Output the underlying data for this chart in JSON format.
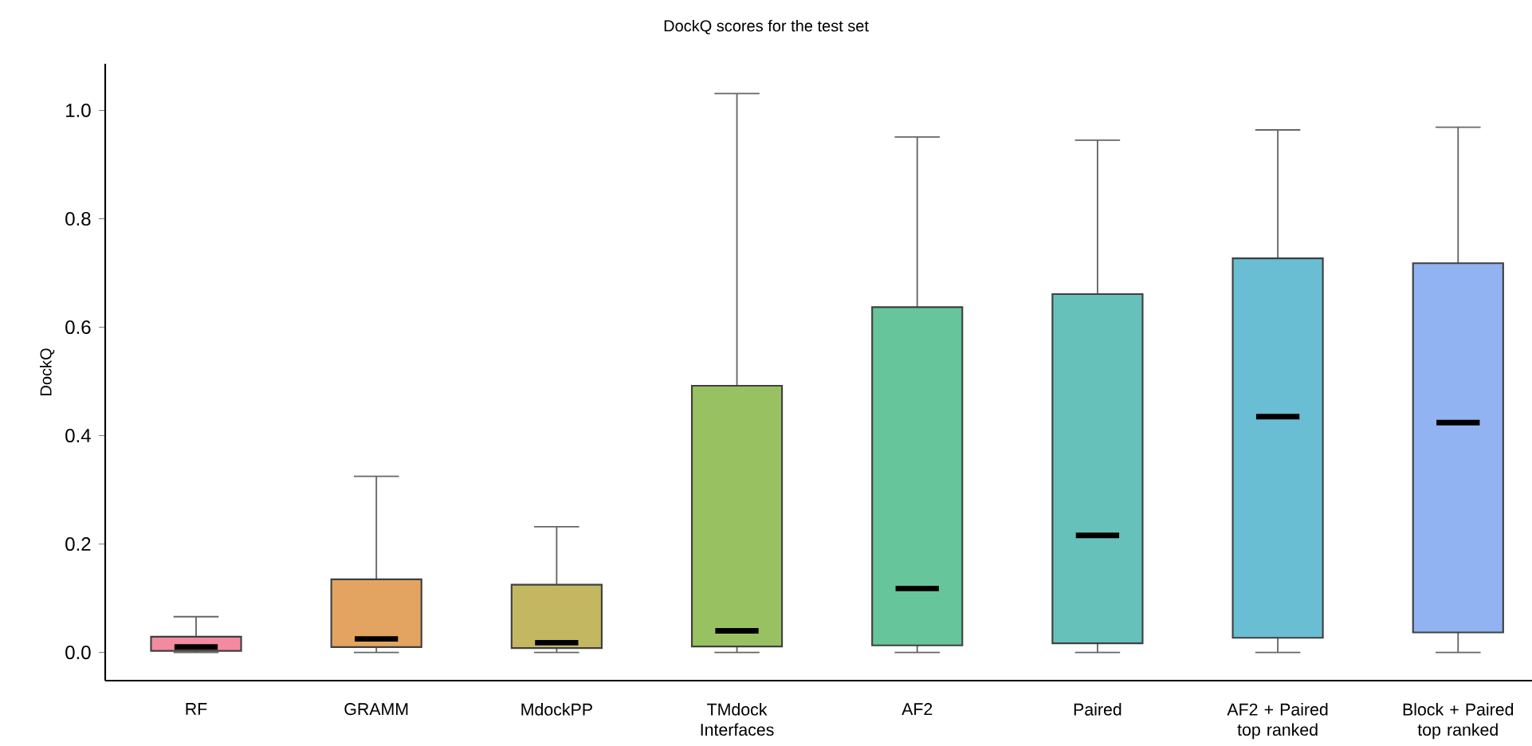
{
  "chart_data": {
    "type": "box",
    "title": "DockQ scores for the test set",
    "ylabel": "DockQ",
    "categories": [
      "RF",
      "GRAMM",
      "MdockPP",
      "TMdock Interfaces",
      "AF2",
      "Paired",
      "AF2 + Paired top ranked",
      "Block + Paired top ranked"
    ],
    "boxes": [
      {
        "low": 0.0,
        "q1": 0.003,
        "median": 0.01,
        "q3": 0.029,
        "high": 0.066
      },
      {
        "low": 0.0,
        "q1": 0.01,
        "median": 0.025,
        "q3": 0.135,
        "high": 0.325
      },
      {
        "low": 0.0,
        "q1": 0.008,
        "median": 0.018,
        "q3": 0.125,
        "high": 0.232
      },
      {
        "low": 0.0,
        "q1": 0.011,
        "median": 0.04,
        "q3": 0.492,
        "high": 1.031
      },
      {
        "low": 0.0,
        "q1": 0.013,
        "median": 0.118,
        "q3": 0.637,
        "high": 0.951
      },
      {
        "low": 0.0,
        "q1": 0.017,
        "median": 0.216,
        "q3": 0.661,
        "high": 0.945
      },
      {
        "low": 0.0,
        "q1": 0.027,
        "median": 0.435,
        "q3": 0.727,
        "high": 0.964
      },
      {
        "low": 0.0,
        "q1": 0.037,
        "median": 0.424,
        "q3": 0.718,
        "high": 0.969
      }
    ],
    "colors": [
      "#f38ba0",
      "#e4a461",
      "#c4b762",
      "#98c161",
      "#66c59a",
      "#67c1bb",
      "#6abed4",
      "#92b3f2"
    ],
    "ylim": [
      -0.052,
      1.086
    ],
    "yticks": [
      {
        "value": 0,
        "label": "0.0"
      },
      0.2,
      0.4,
      0.6,
      0.8,
      {
        "value": 1,
        "label": "1.0"
      }
    ],
    "grid": false
  }
}
